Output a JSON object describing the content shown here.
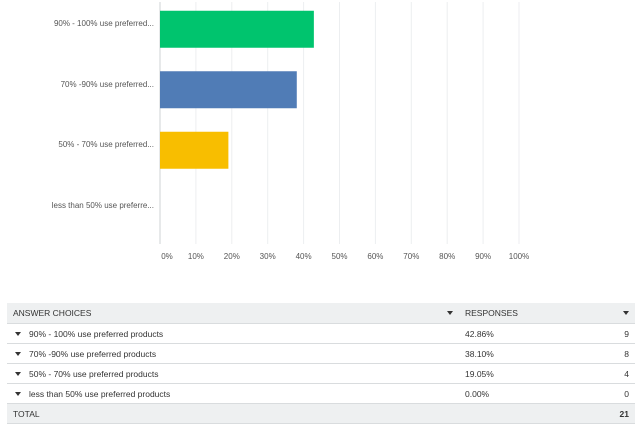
{
  "chart_data": {
    "type": "bar",
    "orientation": "horizontal",
    "categories": [
      "90% - 100% use preferred...",
      "70% -90% use preferred...",
      "50% - 70% use preferred...",
      "less than 50% use preferre..."
    ],
    "values": [
      42.86,
      38.1,
      19.05,
      0.0
    ],
    "colors": [
      "#00c46e",
      "#507cb6",
      "#f8be00",
      "#d9534f"
    ],
    "xlim": [
      0,
      100
    ],
    "x_ticks": [
      "0%",
      "10%",
      "20%",
      "30%",
      "40%",
      "50%",
      "60%",
      "70%",
      "80%",
      "90%",
      "100%"
    ],
    "grid": true
  },
  "table": {
    "headers": {
      "choices": "ANSWER CHOICES",
      "responses": "RESPONSES"
    },
    "rows": [
      {
        "choice": "90% - 100% use preferred products",
        "percent": "42.86%",
        "count": "9"
      },
      {
        "choice": "70% -90% use preferred products",
        "percent": "38.10%",
        "count": "8"
      },
      {
        "choice": "50% - 70% use preferred products",
        "percent": "19.05%",
        "count": "4"
      },
      {
        "choice": "less than 50% use preferred products",
        "percent": "0.00%",
        "count": "0"
      }
    ],
    "total": {
      "label": "TOTAL",
      "count": "21"
    }
  }
}
